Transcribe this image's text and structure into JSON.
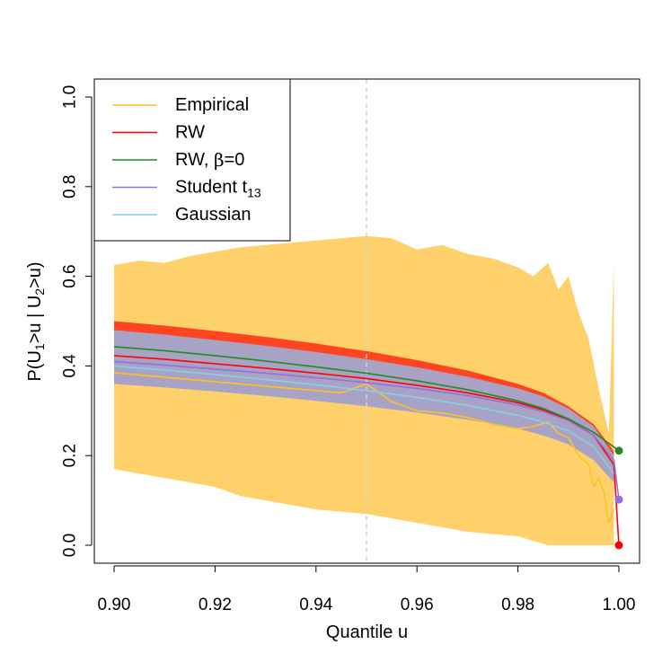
{
  "chart_data": {
    "type": "line",
    "title": "",
    "xlabel": "Quantile u",
    "ylabel_parts": [
      "P(U",
      "1",
      ">u | U",
      "2",
      ">u)"
    ],
    "xlim": [
      0.9,
      1.0
    ],
    "ylim": [
      0.0,
      1.0
    ],
    "x_ticks": [
      0.9,
      0.92,
      0.94,
      0.96,
      0.98,
      1.0
    ],
    "x_tick_labels": [
      "0.90",
      "0.92",
      "0.94",
      "0.96",
      "0.98",
      "1.00"
    ],
    "y_ticks": [
      0.0,
      0.2,
      0.4,
      0.6,
      0.8,
      1.0
    ],
    "y_tick_labels": [
      "0.0",
      "0.2",
      "0.4",
      "0.6",
      "0.8",
      "1.0"
    ],
    "reference_line": {
      "x": 0.95,
      "color": "#d3d3d3",
      "style": "dashed"
    },
    "legend": {
      "position": "top-left",
      "entries": [
        {
          "label": "Empirical",
          "color": "#ffc125"
        },
        {
          "label": "RW",
          "color": "#ff0000"
        },
        {
          "label_prefix": "RW, ",
          "label_symbol": "β",
          "label_suffix": "=0",
          "color": "#228b22"
        },
        {
          "label_main": "Student t",
          "label_sub": "13",
          "color": "#9370db"
        },
        {
          "label": "Gaussian",
          "color": "#87ceeb"
        }
      ]
    },
    "x": [
      0.9,
      0.91,
      0.92,
      0.93,
      0.94,
      0.95,
      0.96,
      0.97,
      0.98,
      0.985,
      0.99,
      0.995,
      0.999,
      1.0
    ],
    "bands": [
      {
        "name": "Empirical",
        "color": "#ffd16a",
        "x": [
          0.9,
          0.905,
          0.91,
          0.915,
          0.92,
          0.925,
          0.93,
          0.935,
          0.94,
          0.945,
          0.95,
          0.955,
          0.96,
          0.965,
          0.97,
          0.975,
          0.98,
          0.983,
          0.986,
          0.988,
          0.99,
          0.992,
          0.994,
          0.996,
          0.998,
          0.999
        ],
        "upper": [
          0.625,
          0.635,
          0.63,
          0.645,
          0.655,
          0.665,
          0.67,
          0.675,
          0.68,
          0.685,
          0.69,
          0.685,
          0.66,
          0.67,
          0.65,
          0.64,
          0.62,
          0.6,
          0.63,
          0.57,
          0.6,
          0.52,
          0.46,
          0.35,
          0.25,
          0.63
        ],
        "lower": [
          0.17,
          0.16,
          0.15,
          0.14,
          0.13,
          0.11,
          0.1,
          0.09,
          0.08,
          0.075,
          0.07,
          0.06,
          0.05,
          0.04,
          0.03,
          0.025,
          0.02,
          0.01,
          0.0,
          0.0,
          0.0,
          0.0,
          0.0,
          0.0,
          0.0,
          0.0
        ]
      },
      {
        "name": "RW",
        "color": "#ff4422",
        "x": [
          0.9,
          0.91,
          0.92,
          0.93,
          0.94,
          0.95,
          0.96,
          0.97,
          0.98,
          0.985,
          0.99,
          0.995,
          0.999
        ],
        "upper": [
          0.5,
          0.49,
          0.478,
          0.465,
          0.45,
          0.433,
          0.413,
          0.39,
          0.36,
          0.34,
          0.31,
          0.27,
          0.21
        ],
        "lower": [
          0.362,
          0.355,
          0.347,
          0.338,
          0.328,
          0.317,
          0.305,
          0.29,
          0.27,
          0.255,
          0.235,
          0.2,
          0.15
        ]
      },
      {
        "name": "Gaussian",
        "color": "#a8a3c4",
        "x": [
          0.9,
          0.91,
          0.92,
          0.93,
          0.94,
          0.95,
          0.96,
          0.97,
          0.98,
          0.985,
          0.99,
          0.995,
          0.999
        ],
        "upper": [
          0.48,
          0.47,
          0.458,
          0.445,
          0.431,
          0.415,
          0.397,
          0.376,
          0.35,
          0.332,
          0.305,
          0.265,
          0.2
        ],
        "lower": [
          0.36,
          0.352,
          0.343,
          0.333,
          0.322,
          0.31,
          0.296,
          0.28,
          0.26,
          0.245,
          0.225,
          0.19,
          0.14
        ]
      }
    ],
    "series": [
      {
        "name": "Empirical",
        "color": "#ffc125",
        "x": [
          0.9,
          0.905,
          0.91,
          0.915,
          0.92,
          0.925,
          0.93,
          0.935,
          0.94,
          0.945,
          0.95,
          0.955,
          0.96,
          0.965,
          0.97,
          0.975,
          0.98,
          0.983,
          0.986,
          0.988,
          0.99,
          0.992,
          0.994,
          0.995,
          0.996,
          0.997,
          0.998,
          0.999
        ],
        "y": [
          0.385,
          0.38,
          0.375,
          0.37,
          0.365,
          0.36,
          0.355,
          0.35,
          0.345,
          0.34,
          0.36,
          0.32,
          0.3,
          0.295,
          0.285,
          0.27,
          0.26,
          0.265,
          0.275,
          0.25,
          0.24,
          0.2,
          0.18,
          0.13,
          0.15,
          0.12,
          0.05,
          0.08
        ]
      },
      {
        "name": "RW",
        "color": "#ff0000",
        "x": [
          0.9,
          0.91,
          0.92,
          0.93,
          0.94,
          0.95,
          0.96,
          0.97,
          0.98,
          0.985,
          0.99,
          0.995,
          0.999,
          1.0
        ],
        "y": [
          0.423,
          0.415,
          0.405,
          0.395,
          0.384,
          0.372,
          0.357,
          0.34,
          0.318,
          0.302,
          0.28,
          0.245,
          0.18,
          0.0
        ]
      },
      {
        "name": "RW, beta=0",
        "color": "#228b22",
        "x": [
          0.9,
          0.91,
          0.92,
          0.93,
          0.94,
          0.95,
          0.96,
          0.97,
          0.98,
          0.985,
          0.99,
          0.995,
          0.999,
          1.0
        ],
        "y": [
          0.443,
          0.434,
          0.423,
          0.411,
          0.398,
          0.384,
          0.367,
          0.347,
          0.322,
          0.305,
          0.282,
          0.252,
          0.219,
          0.211
        ]
      },
      {
        "name": "Student t13",
        "color": "#9370db",
        "x": [
          0.9,
          0.91,
          0.92,
          0.93,
          0.94,
          0.95,
          0.96,
          0.97,
          0.98,
          0.985,
          0.99,
          0.995,
          0.999,
          1.0
        ],
        "y": [
          0.41,
          0.402,
          0.393,
          0.384,
          0.374,
          0.363,
          0.35,
          0.334,
          0.313,
          0.298,
          0.278,
          0.245,
          0.19,
          0.102
        ]
      },
      {
        "name": "Gaussian",
        "color": "#87ceeb",
        "x": [
          0.9,
          0.91,
          0.92,
          0.93,
          0.94,
          0.95,
          0.96,
          0.97,
          0.98,
          0.985,
          0.99,
          0.995,
          0.999
        ],
        "y": [
          0.4,
          0.391,
          0.381,
          0.37,
          0.358,
          0.345,
          0.33,
          0.312,
          0.29,
          0.275,
          0.255,
          0.22,
          0.16
        ]
      }
    ],
    "endpoints": [
      {
        "x": 1.0,
        "y": 0.211,
        "color": "#228b22"
      },
      {
        "x": 1.0,
        "y": 0.102,
        "color": "#9370db"
      },
      {
        "x": 1.0,
        "y": 0.0,
        "color": "#ff0000"
      }
    ]
  }
}
